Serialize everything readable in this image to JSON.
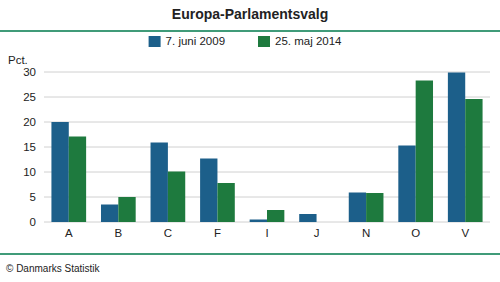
{
  "chart_data": {
    "type": "bar",
    "title": "Europa-Parlamentsvalg",
    "categories": [
      "A",
      "B",
      "C",
      "F",
      "I",
      "J",
      "N",
      "O",
      "V"
    ],
    "series": [
      {
        "name": "7. juni 2009",
        "color": "#1c5f8a",
        "values": [
          20.0,
          3.5,
          15.9,
          12.7,
          0.5,
          1.6,
          5.9,
          15.3,
          29.9
        ]
      },
      {
        "name": "25. maj 2014",
        "color": "#1e7a3e",
        "values": [
          17.1,
          5.0,
          10.1,
          7.8,
          2.4,
          0.0,
          5.8,
          28.3,
          24.6
        ]
      }
    ],
    "ylim": [
      0,
      30
    ],
    "yticks": [
      0,
      5,
      10,
      15,
      20,
      25,
      30
    ],
    "ylabel": "Pct.",
    "annotations": [
      "© Danmarks Statistik"
    ],
    "grid": true,
    "legend": "top"
  }
}
